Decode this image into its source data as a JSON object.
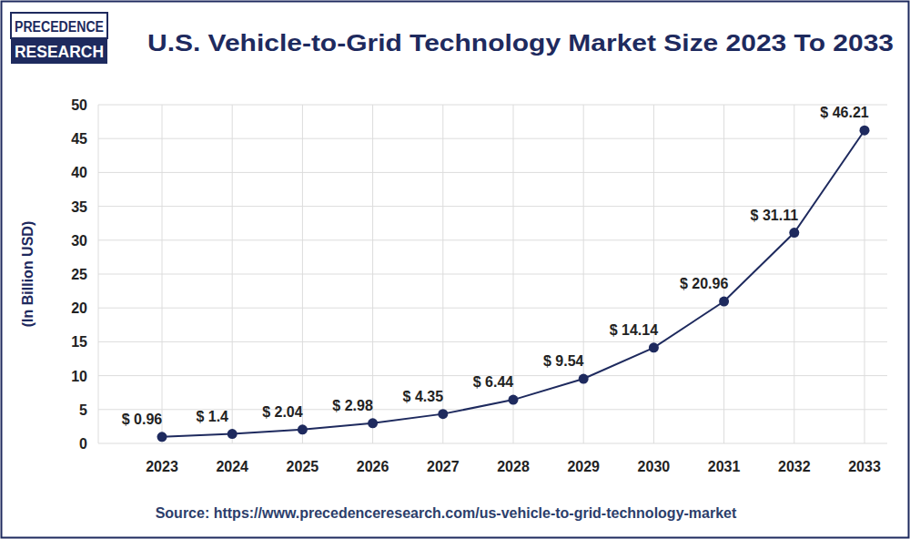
{
  "chart_data": {
    "type": "line",
    "title": "U.S. Vehicle-to-Grid Technology Market Size 2023 To 2033",
    "y_label": "(In Billion USD)",
    "annotations": [
      "PRECEDENCE",
      "RESEARCH",
      "Source: https://www.precedenceresearch.com/us-vehicle-to-grid-technology-market"
    ],
    "categories": [
      "2023",
      "2024",
      "2025",
      "2026",
      "2027",
      "2028",
      "2029",
      "2030",
      "2031",
      "2032",
      "2033"
    ],
    "values": [
      0.96,
      1.4,
      2.04,
      2.98,
      4.35,
      6.44,
      9.54,
      14.14,
      20.96,
      31.11,
      46.21
    ],
    "value_labels": [
      "$ 0.96",
      "$ 1.4",
      "$ 2.04",
      "$ 2.98",
      "$ 4.35",
      "$ 6.44",
      "$ 9.54",
      "$ 14.14",
      "$ 20.96",
      "$ 31.11",
      "$ 46.21"
    ],
    "color": "#1e2a5e",
    "ylim": [
      0,
      50
    ],
    "yticks": [
      0,
      5,
      10,
      15,
      20,
      25,
      30,
      35,
      40,
      45,
      50
    ],
    "grid": true,
    "data_labels": true,
    "marker": "circle",
    "line_style": "solid"
  }
}
